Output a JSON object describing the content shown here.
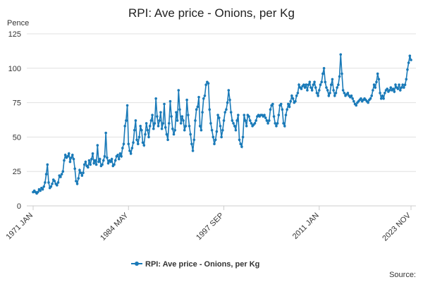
{
  "chart_data": {
    "type": "line",
    "title": "RPI: Ave price - Onions, per Kg",
    "y_axis_label": "Pence",
    "source": "Source:",
    "categories": [
      "1971 JAN",
      null,
      null,
      null,
      null,
      null,
      null,
      null,
      null,
      null,
      null,
      null,
      null,
      null,
      null,
      null,
      null,
      null,
      null,
      null,
      null,
      null,
      null,
      null,
      null,
      null,
      null,
      null,
      null,
      null,
      null,
      null,
      null,
      null,
      null,
      null,
      null,
      null,
      null,
      null,
      null,
      null,
      null,
      null,
      null,
      null,
      null,
      null,
      null,
      null,
      null,
      null,
      null,
      null,
      null,
      null,
      null,
      null,
      null,
      null,
      null,
      null,
      null,
      null,
      null,
      null,
      null,
      null,
      null,
      null,
      null,
      null,
      null,
      null,
      null,
      null,
      null,
      null,
      null,
      null,
      "1984 MAY",
      null,
      null,
      null,
      null,
      null,
      null,
      null,
      null,
      null,
      null,
      null,
      null,
      null,
      null,
      null,
      null,
      null,
      null,
      null,
      null,
      null,
      null,
      null,
      null,
      null,
      null,
      null,
      null,
      null,
      null,
      null,
      null,
      null,
      null,
      null,
      null,
      null,
      null,
      null,
      null,
      null,
      null,
      null,
      null,
      null,
      null,
      null,
      null,
      null,
      null,
      null,
      null,
      null,
      null,
      null,
      null,
      null,
      null,
      null,
      null,
      null,
      null,
      null,
      null,
      null,
      null,
      null,
      null,
      null,
      null,
      null,
      null,
      null,
      null,
      null,
      null,
      null,
      null,
      null,
      "1997 SEP",
      null,
      null,
      null,
      null,
      null,
      null,
      null,
      null,
      null,
      null,
      null,
      null,
      null,
      null,
      null,
      null,
      null,
      null,
      null,
      null,
      null,
      null,
      null,
      null,
      null,
      null,
      null,
      null,
      null,
      null,
      null,
      null,
      null,
      null,
      null,
      null,
      null,
      null,
      null,
      null,
      null,
      null,
      null,
      null,
      null,
      null,
      null,
      null,
      null,
      null,
      null,
      null,
      null,
      null,
      null,
      null,
      null,
      null,
      null,
      null,
      null,
      null,
      null,
      null,
      null,
      null,
      null,
      null,
      null,
      null,
      null,
      null,
      null,
      null,
      null,
      null,
      null,
      null,
      null,
      "2011 JAN",
      null,
      null,
      null,
      null,
      null,
      null,
      null,
      null,
      null,
      null,
      null,
      null,
      null,
      null,
      null,
      null,
      null,
      null,
      null,
      null,
      null,
      null,
      null,
      null,
      null,
      null,
      null,
      null,
      null,
      null,
      null,
      null,
      null,
      null,
      null,
      null,
      null,
      null,
      null,
      null,
      null,
      null,
      null,
      null,
      null,
      null,
      null,
      null,
      null,
      null,
      null,
      null,
      null,
      null,
      null,
      null,
      null,
      null,
      null,
      null,
      null,
      null,
      null,
      null,
      null,
      null,
      null,
      null,
      null,
      null,
      null,
      null,
      null,
      null,
      null,
      null,
      "2023 NOV"
    ],
    "series": [
      {
        "name": "RPI: Ave price - Onions, per Kg",
        "color": "#1a7ab8",
        "values": [
          10,
          11,
          10,
          9,
          10,
          12,
          11,
          13,
          12,
          14,
          17,
          23,
          30,
          17,
          13,
          14,
          16,
          19,
          18,
          16,
          15,
          17,
          22,
          21,
          23,
          25,
          33,
          37,
          35,
          36,
          38,
          32,
          35,
          37,
          34,
          27,
          18,
          16,
          20,
          26,
          24,
          22,
          24,
          30,
          32,
          29,
          28,
          33,
          30,
          34,
          38,
          31,
          33,
          30,
          44,
          32,
          34,
          29,
          30,
          33,
          36,
          53,
          35,
          31,
          33,
          32,
          34,
          29,
          30,
          33,
          36,
          37,
          34,
          38,
          36,
          42,
          45,
          58,
          62,
          73,
          45,
          40,
          38,
          42,
          46,
          55,
          62,
          48,
          45,
          50,
          58,
          55,
          46,
          44,
          52,
          60,
          55,
          50,
          58,
          62,
          66,
          56,
          60,
          78,
          65,
          58,
          62,
          68,
          56,
          60,
          74,
          57,
          52,
          48,
          60,
          76,
          65,
          56,
          52,
          55,
          68,
          62,
          84,
          70,
          60,
          65,
          62,
          55,
          58,
          77,
          66,
          58,
          52,
          45,
          40,
          48,
          62,
          70,
          72,
          79,
          58,
          55,
          68,
          78,
          80,
          88,
          90,
          89,
          70,
          60,
          55,
          50,
          45,
          48,
          54,
          66,
          64,
          58,
          50,
          55,
          62,
          68,
          70,
          75,
          84,
          77,
          68,
          62,
          60,
          58,
          55,
          62,
          66,
          48,
          45,
          43,
          50,
          66,
          62,
          58,
          66,
          65,
          62,
          60,
          58,
          59,
          60,
          62,
          65,
          66,
          65,
          66,
          66,
          65,
          66,
          64,
          62,
          60,
          62,
          70,
          73,
          74,
          65,
          60,
          58,
          60,
          66,
          73,
          74,
          70,
          60,
          58,
          66,
          70,
          74,
          72,
          76,
          80,
          78,
          75,
          76,
          80,
          82,
          88,
          86,
          85,
          87,
          88,
          86,
          88,
          84,
          88,
          90,
          86,
          84,
          88,
          90,
          86,
          82,
          80,
          84,
          88,
          90,
          96,
          100,
          90,
          86,
          84,
          80,
          82,
          88,
          92,
          84,
          80,
          82,
          86,
          88,
          94,
          110,
          96,
          84,
          82,
          80,
          81,
          82,
          80,
          79,
          80,
          78,
          76,
          74,
          73,
          75,
          76,
          77,
          78,
          76,
          77,
          78,
          77,
          76,
          75,
          77,
          78,
          80,
          84,
          88,
          86,
          90,
          96,
          92,
          82,
          78,
          80,
          78,
          82,
          84,
          85,
          83,
          84,
          86,
          84,
          85,
          83,
          88,
          86,
          85,
          88,
          84,
          86,
          88,
          86,
          88,
          92,
          99,
          104,
          109,
          106
        ]
      }
    ],
    "ylim": [
      0,
      125
    ],
    "yticks": [
      0,
      25,
      50,
      75,
      100,
      125
    ],
    "grid": true,
    "legend": "bottom"
  }
}
